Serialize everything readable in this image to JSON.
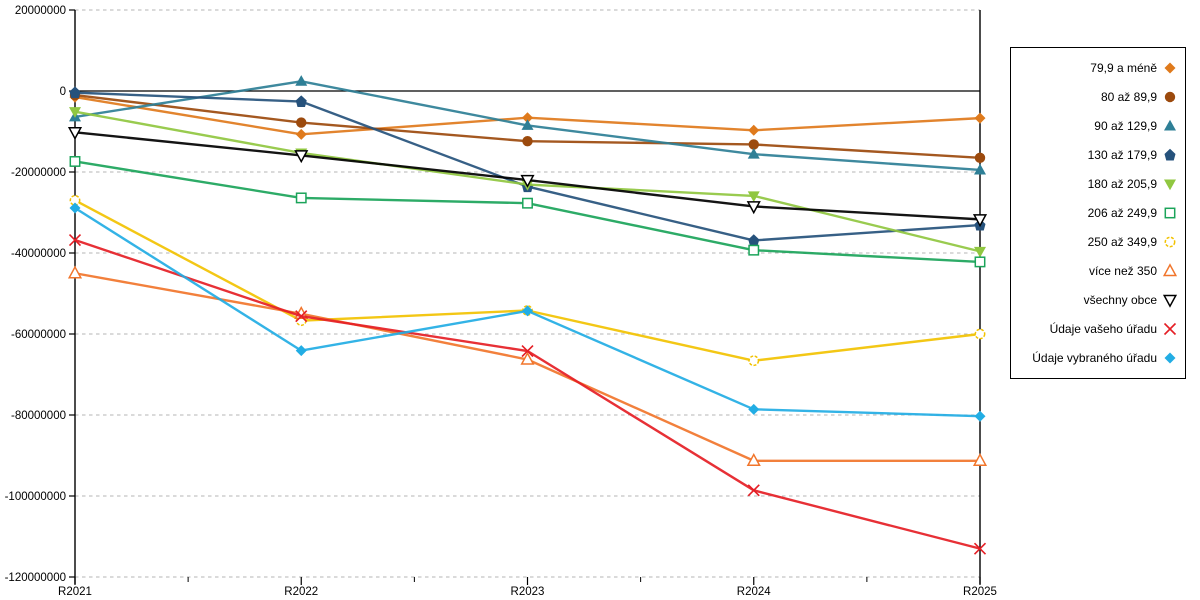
{
  "chart_data": {
    "type": "line",
    "title": "",
    "xlabel": "",
    "ylabel": "",
    "x_categories": [
      "R2021",
      "R2022",
      "R2023",
      "R2024",
      "R2025"
    ],
    "ylim": [
      -120000000,
      20000000
    ],
    "y_ticks": [
      {
        "value": 20000000,
        "label": "20000000"
      },
      {
        "value": 0,
        "label": "0"
      },
      {
        "value": -20000000,
        "label": "-20000000"
      },
      {
        "value": -40000000,
        "label": "-40000000"
      },
      {
        "value": -60000000,
        "label": "-60000000"
      },
      {
        "value": -80000000,
        "label": "-80000000"
      },
      {
        "value": -100000000,
        "label": "-100000000"
      },
      {
        "value": -120000000,
        "label": "-120000000"
      }
    ],
    "grid": "horizontal-dashed-gray",
    "legend_position": "right",
    "colors": {
      "axis": "#000000",
      "gridline": "#b5b5b5",
      "background": "#ffffff"
    },
    "series": [
      {
        "name": "79,9 a méně",
        "color": "#df7a1c",
        "marker": "diamond-filled",
        "values": [
          -1500000,
          -10700000,
          -6600000,
          -9700000,
          -6700000
        ]
      },
      {
        "name": "80 až 89,9",
        "color": "#9c4a0d",
        "marker": "circle-filled",
        "values": [
          -1000000,
          -7800000,
          -12400000,
          -13200000,
          -16500000
        ]
      },
      {
        "name": "90 až 129,9",
        "color": "#2e7f96",
        "marker": "triangle-up-filled",
        "values": [
          -6400000,
          2400000,
          -8500000,
          -15600000,
          -19500000
        ]
      },
      {
        "name": "130 až 179,9",
        "color": "#26527c",
        "marker": "pentagon-filled",
        "values": [
          -400000,
          -2600000,
          -23600000,
          -36900000,
          -33100000
        ]
      },
      {
        "name": "180 až 205,9",
        "color": "#90c740",
        "marker": "triangle-down-filled",
        "values": [
          -5100000,
          -15300000,
          -23100000,
          -25900000,
          -39600000
        ]
      },
      {
        "name": "206 až 249,9",
        "color": "#1ba45a",
        "marker": "square-open",
        "values": [
          -17400000,
          -26400000,
          -27700000,
          -39300000,
          -42200000
        ]
      },
      {
        "name": "250 až 349,9",
        "color": "#f2c201",
        "marker": "circle-open",
        "values": [
          -27000000,
          -56700000,
          -54200000,
          -66600000,
          -60000000
        ]
      },
      {
        "name": "více než 350",
        "color": "#f1752b",
        "marker": "triangle-up-open",
        "values": [
          -45000000,
          -55000000,
          -66300000,
          -91300000,
          -91300000
        ]
      },
      {
        "name": "všechny obce",
        "color": "#000000",
        "marker": "triangle-down-open",
        "values": [
          -10200000,
          -15900000,
          -22000000,
          -28500000,
          -31700000
        ]
      },
      {
        "name": "Údaje vašeho úřadu",
        "color": "#e51e25",
        "marker": "x",
        "values": [
          -36800000,
          -55600000,
          -64200000,
          -98600000,
          -113000000
        ]
      },
      {
        "name": "Údaje vybraného úřadu",
        "color": "#22ade4",
        "marker": "diamond-filled",
        "values": [
          -28900000,
          -64100000,
          -54300000,
          -78600000,
          -80300000
        ]
      }
    ]
  }
}
